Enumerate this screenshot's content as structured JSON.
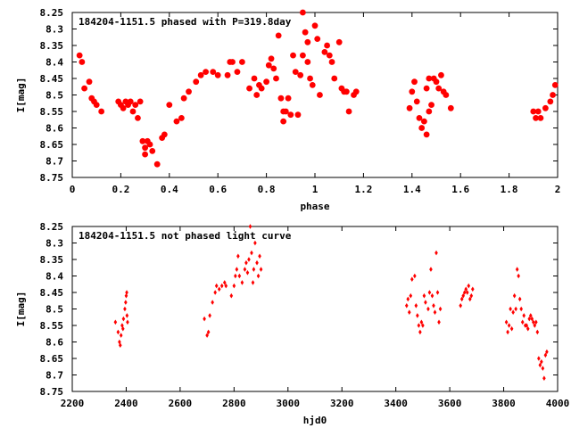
{
  "chart_data": [
    {
      "type": "scatter",
      "title": "184204-1151.5 phased with P=319.8day",
      "xlabel": "phase",
      "ylabel": "I[mag]",
      "xlim": [
        0,
        2
      ],
      "ylim": [
        8.25,
        8.75
      ],
      "y_inverted": true,
      "grid": false,
      "marker": "filled-circle",
      "color": "#ff0000",
      "x_ticks": [
        "0",
        "0.2",
        "0.4",
        "0.6",
        "0.8",
        "1",
        "1.2",
        "1.4",
        "1.6",
        "1.8",
        "2"
      ],
      "y_ticks": [
        "8.25",
        "8.3",
        "8.35",
        "8.4",
        "8.45",
        "8.5",
        "8.55",
        "8.6",
        "8.65",
        "8.7",
        "8.75"
      ],
      "points": [
        [
          0.03,
          8.38
        ],
        [
          0.04,
          8.4
        ],
        [
          0.05,
          8.48
        ],
        [
          0.07,
          8.46
        ],
        [
          0.08,
          8.51
        ],
        [
          0.09,
          8.52
        ],
        [
          0.1,
          8.53
        ],
        [
          0.12,
          8.55
        ],
        [
          0.19,
          8.52
        ],
        [
          0.2,
          8.53
        ],
        [
          0.21,
          8.54
        ],
        [
          0.22,
          8.52
        ],
        [
          0.23,
          8.53
        ],
        [
          0.24,
          8.52
        ],
        [
          0.25,
          8.55
        ],
        [
          0.26,
          8.53
        ],
        [
          0.27,
          8.57
        ],
        [
          0.28,
          8.52
        ],
        [
          0.29,
          8.64
        ],
        [
          0.3,
          8.66
        ],
        [
          0.3,
          8.68
        ],
        [
          0.31,
          8.64
        ],
        [
          0.32,
          8.65
        ],
        [
          0.33,
          8.67
        ],
        [
          0.35,
          8.71
        ],
        [
          0.37,
          8.63
        ],
        [
          0.38,
          8.62
        ],
        [
          0.4,
          8.53
        ],
        [
          0.43,
          8.58
        ],
        [
          0.45,
          8.57
        ],
        [
          0.46,
          8.51
        ],
        [
          0.48,
          8.49
        ],
        [
          0.51,
          8.46
        ],
        [
          0.53,
          8.44
        ],
        [
          0.55,
          8.43
        ],
        [
          0.58,
          8.43
        ],
        [
          0.6,
          8.44
        ],
        [
          0.64,
          8.44
        ],
        [
          0.65,
          8.4
        ],
        [
          0.66,
          8.4
        ],
        [
          0.68,
          8.43
        ],
        [
          0.7,
          8.4
        ],
        [
          0.73,
          8.48
        ],
        [
          0.75,
          8.45
        ],
        [
          0.76,
          8.5
        ],
        [
          0.77,
          8.47
        ],
        [
          0.78,
          8.48
        ],
        [
          0.8,
          8.46
        ],
        [
          0.81,
          8.41
        ],
        [
          0.82,
          8.39
        ],
        [
          0.83,
          8.42
        ],
        [
          0.84,
          8.45
        ],
        [
          0.85,
          8.32
        ],
        [
          0.86,
          8.51
        ],
        [
          0.87,
          8.55
        ],
        [
          0.87,
          8.58
        ],
        [
          0.88,
          8.55
        ],
        [
          0.89,
          8.51
        ],
        [
          0.9,
          8.56
        ],
        [
          0.91,
          8.38
        ],
        [
          0.92,
          8.43
        ],
        [
          0.93,
          8.56
        ],
        [
          0.94,
          8.44
        ],
        [
          0.95,
          8.38
        ],
        [
          0.95,
          8.25
        ],
        [
          0.96,
          8.31
        ],
        [
          0.97,
          8.34
        ],
        [
          0.97,
          8.4
        ],
        [
          0.98,
          8.45
        ],
        [
          0.99,
          8.47
        ],
        [
          1.0,
          8.29
        ],
        [
          1.01,
          8.33
        ],
        [
          1.02,
          8.5
        ],
        [
          1.04,
          8.37
        ],
        [
          1.05,
          8.35
        ],
        [
          1.06,
          8.38
        ],
        [
          1.07,
          8.4
        ],
        [
          1.08,
          8.45
        ],
        [
          1.1,
          8.34
        ],
        [
          1.11,
          8.48
        ],
        [
          1.12,
          8.49
        ],
        [
          1.13,
          8.49
        ],
        [
          1.14,
          8.55
        ],
        [
          1.16,
          8.5
        ],
        [
          1.17,
          8.49
        ],
        [
          1.39,
          8.54
        ],
        [
          1.4,
          8.49
        ],
        [
          1.41,
          8.46
        ],
        [
          1.42,
          8.52
        ],
        [
          1.43,
          8.57
        ],
        [
          1.44,
          8.6
        ],
        [
          1.45,
          8.58
        ],
        [
          1.46,
          8.62
        ],
        [
          1.46,
          8.48
        ],
        [
          1.47,
          8.45
        ],
        [
          1.47,
          8.55
        ],
        [
          1.48,
          8.53
        ],
        [
          1.49,
          8.45
        ],
        [
          1.5,
          8.46
        ],
        [
          1.51,
          8.48
        ],
        [
          1.52,
          8.44
        ],
        [
          1.53,
          8.49
        ],
        [
          1.54,
          8.5
        ],
        [
          1.56,
          8.54
        ],
        [
          1.9,
          8.55
        ],
        [
          1.91,
          8.57
        ],
        [
          1.92,
          8.55
        ],
        [
          1.93,
          8.57
        ],
        [
          1.95,
          8.54
        ],
        [
          1.97,
          8.52
        ],
        [
          1.98,
          8.5
        ],
        [
          1.99,
          8.47
        ]
      ]
    },
    {
      "type": "scatter",
      "title": "184204-1151.5 not phased light curve",
      "xlabel": "hjd0",
      "ylabel": "I[mag]",
      "xlim": [
        2200,
        4000
      ],
      "ylim": [
        8.25,
        8.75
      ],
      "y_inverted": true,
      "grid": false,
      "marker": "small-diamond",
      "color": "#ff0000",
      "x_ticks": [
        "2200",
        "2400",
        "2600",
        "2800",
        "3000",
        "3200",
        "3400",
        "3600",
        "3800",
        "4000"
      ],
      "y_ticks": [
        "8.25",
        "8.3",
        "8.35",
        "8.4",
        "8.45",
        "8.5",
        "8.55",
        "8.6",
        "8.65",
        "8.7",
        "8.75"
      ],
      "points": [
        [
          2360,
          8.54
        ],
        [
          2370,
          8.57
        ],
        [
          2375,
          8.6
        ],
        [
          2378,
          8.61
        ],
        [
          2381,
          8.58
        ],
        [
          2385,
          8.55
        ],
        [
          2388,
          8.56
        ],
        [
          2390,
          8.53
        ],
        [
          2395,
          8.5
        ],
        [
          2398,
          8.48
        ],
        [
          2400,
          8.46
        ],
        [
          2402,
          8.45
        ],
        [
          2403,
          8.52
        ],
        [
          2405,
          8.54
        ],
        [
          2690,
          8.53
        ],
        [
          2700,
          8.58
        ],
        [
          2705,
          8.57
        ],
        [
          2710,
          8.52
        ],
        [
          2720,
          8.48
        ],
        [
          2730,
          8.45
        ],
        [
          2735,
          8.43
        ],
        [
          2745,
          8.44
        ],
        [
          2755,
          8.43
        ],
        [
          2765,
          8.42
        ],
        [
          2770,
          8.43
        ],
        [
          2790,
          8.46
        ],
        [
          2800,
          8.43
        ],
        [
          2805,
          8.4
        ],
        [
          2810,
          8.38
        ],
        [
          2815,
          8.34
        ],
        [
          2820,
          8.4
        ],
        [
          2830,
          8.42
        ],
        [
          2840,
          8.38
        ],
        [
          2845,
          8.36
        ],
        [
          2850,
          8.39
        ],
        [
          2855,
          8.35
        ],
        [
          2860,
          8.25
        ],
        [
          2865,
          8.33
        ],
        [
          2870,
          8.42
        ],
        [
          2873,
          8.38
        ],
        [
          2878,
          8.3
        ],
        [
          2885,
          8.36
        ],
        [
          2890,
          8.4
        ],
        [
          2895,
          8.34
        ],
        [
          2900,
          8.38
        ],
        [
          3440,
          8.49
        ],
        [
          3445,
          8.47
        ],
        [
          3450,
          8.51
        ],
        [
          3455,
          8.46
        ],
        [
          3460,
          8.41
        ],
        [
          3470,
          8.4
        ],
        [
          3475,
          8.49
        ],
        [
          3480,
          8.52
        ],
        [
          3485,
          8.55
        ],
        [
          3490,
          8.57
        ],
        [
          3495,
          8.54
        ],
        [
          3500,
          8.55
        ],
        [
          3505,
          8.46
        ],
        [
          3510,
          8.48
        ],
        [
          3520,
          8.5
        ],
        [
          3525,
          8.45
        ],
        [
          3530,
          8.38
        ],
        [
          3535,
          8.46
        ],
        [
          3540,
          8.49
        ],
        [
          3545,
          8.51
        ],
        [
          3550,
          8.33
        ],
        [
          3555,
          8.45
        ],
        [
          3560,
          8.54
        ],
        [
          3565,
          8.5
        ],
        [
          3640,
          8.49
        ],
        [
          3645,
          8.47
        ],
        [
          3650,
          8.46
        ],
        [
          3655,
          8.45
        ],
        [
          3660,
          8.44
        ],
        [
          3665,
          8.45
        ],
        [
          3670,
          8.43
        ],
        [
          3675,
          8.47
        ],
        [
          3680,
          8.46
        ],
        [
          3685,
          8.44
        ],
        [
          3810,
          8.54
        ],
        [
          3815,
          8.57
        ],
        [
          3820,
          8.55
        ],
        [
          3825,
          8.5
        ],
        [
          3830,
          8.56
        ],
        [
          3835,
          8.51
        ],
        [
          3840,
          8.46
        ],
        [
          3845,
          8.5
        ],
        [
          3850,
          8.38
        ],
        [
          3855,
          8.4
        ],
        [
          3860,
          8.47
        ],
        [
          3865,
          8.5
        ],
        [
          3870,
          8.54
        ],
        [
          3875,
          8.52
        ],
        [
          3880,
          8.55
        ],
        [
          3885,
          8.55
        ],
        [
          3890,
          8.56
        ],
        [
          3895,
          8.53
        ],
        [
          3900,
          8.52
        ],
        [
          3905,
          8.53
        ],
        [
          3910,
          8.54
        ],
        [
          3915,
          8.55
        ],
        [
          3920,
          8.54
        ],
        [
          3925,
          8.57
        ],
        [
          3930,
          8.65
        ],
        [
          3935,
          8.67
        ],
        [
          3940,
          8.66
        ],
        [
          3945,
          8.68
        ],
        [
          3950,
          8.71
        ],
        [
          3955,
          8.64
        ],
        [
          3960,
          8.63
        ]
      ]
    }
  ]
}
